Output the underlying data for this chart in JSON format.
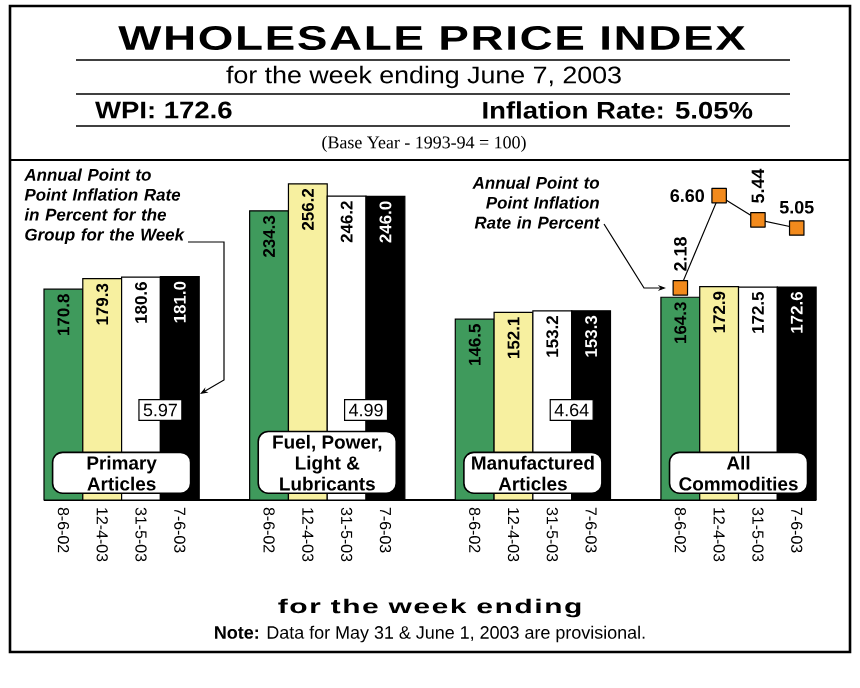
{
  "chart_data": {
    "type": "bar",
    "title": "WHOLESALE PRICE INDEX",
    "subtitle": "for the week ending June 7, 2003",
    "xlabel": "for the week ending",
    "categories": [
      "8-6-02",
      "12-4-03",
      "31-5-03",
      "7-6-03",
      "8-6-02",
      "12-4-03",
      "31-5-03",
      "7-6-03",
      "8-6-02",
      "12-4-03",
      "31-5-03",
      "7-6-03",
      "8-6-02",
      "12-4-03",
      "31-5-03",
      "7-6-03"
    ],
    "series": [
      {
        "values": [
          170.8,
          179.3,
          180.6,
          181.0,
          234.3,
          256.2,
          246.2,
          246.0,
          146.5,
          152.1,
          153.2,
          153.3,
          164.3,
          172.9,
          172.5,
          172.6
        ],
        "value_labels": [
          "170.8",
          "179.3",
          "180.6",
          "181.0",
          "234.3",
          "256.2",
          "246.2",
          "246.0",
          "146.5",
          "152.1",
          "153.2",
          "153.3",
          "164.3",
          "172.9",
          "172.5",
          "172.6"
        ],
        "colors": [
          "#3f9a5c",
          "#f7f0a0",
          "#ffffff",
          "#000000",
          "#3f9a5c",
          "#f7f0a0",
          "#ffffff",
          "#000000",
          "#3f9a5c",
          "#f7f0a0",
          "#ffffff",
          "#000000",
          "#3f9a5c",
          "#f7f0a0",
          "#ffffff",
          "#000000"
        ]
      },
      {
        "type": "line",
        "axis": "y2",
        "color": "#f28a1c",
        "marker": "square",
        "values": [
          null,
          null,
          null,
          null,
          null,
          null,
          null,
          null,
          null,
          null,
          null,
          null,
          2.18,
          6.6,
          5.44,
          5.05
        ],
        "value_labels": [
          null,
          null,
          null,
          null,
          null,
          null,
          null,
          null,
          null,
          null,
          null,
          null,
          "2.18",
          "6.60",
          "5.44",
          "5.05"
        ]
      }
    ],
    "tick_labels": "x",
    "annotations": [
      "Primary Articles",
      "Fuel, Power, Light & Lubricants",
      "Manufactured Articles",
      "All Commodities",
      "5.97",
      "4.99",
      "4.64",
      "Annual Point to Point Inflation Rate in Percent for the Group for the Week",
      "Annual Point to Point Inflation Rate in Percent",
      "WPI: 172.6",
      "Inflation Rate: 5.05%",
      "(Base Year - 1993-94 = 100)",
      "**Note:** Data for May 31 & June 1, 2003 are provisional."
    ]
  }
}
